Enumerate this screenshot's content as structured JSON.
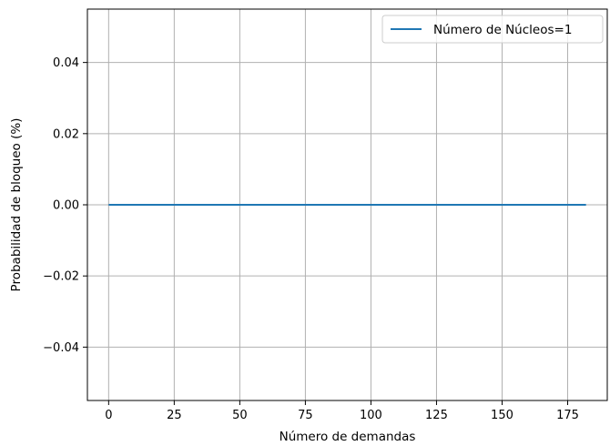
{
  "chart_data": {
    "type": "line",
    "title": "",
    "xlabel": "Número de demandas",
    "ylabel": "Probabilidad de bloqueo (%)",
    "xlim": [
      -8.1,
      190.1
    ],
    "ylim": [
      -0.055,
      0.055
    ],
    "xticks": [
      0,
      25,
      50,
      75,
      100,
      125,
      150,
      175
    ],
    "xtick_labels": [
      "0",
      "25",
      "50",
      "75",
      "100",
      "125",
      "150",
      "175"
    ],
    "yticks": [
      -0.04,
      -0.02,
      0.0,
      0.02,
      0.04
    ],
    "ytick_labels": [
      "−0.04",
      "−0.02",
      "0.00",
      "0.02",
      "0.04"
    ],
    "grid": true,
    "legend_position": "upper right",
    "series": [
      {
        "name": "Número de Núcleos=1",
        "color": "#1f77b4",
        "x": [
          0,
          182
        ],
        "y": [
          0,
          0
        ]
      }
    ]
  }
}
